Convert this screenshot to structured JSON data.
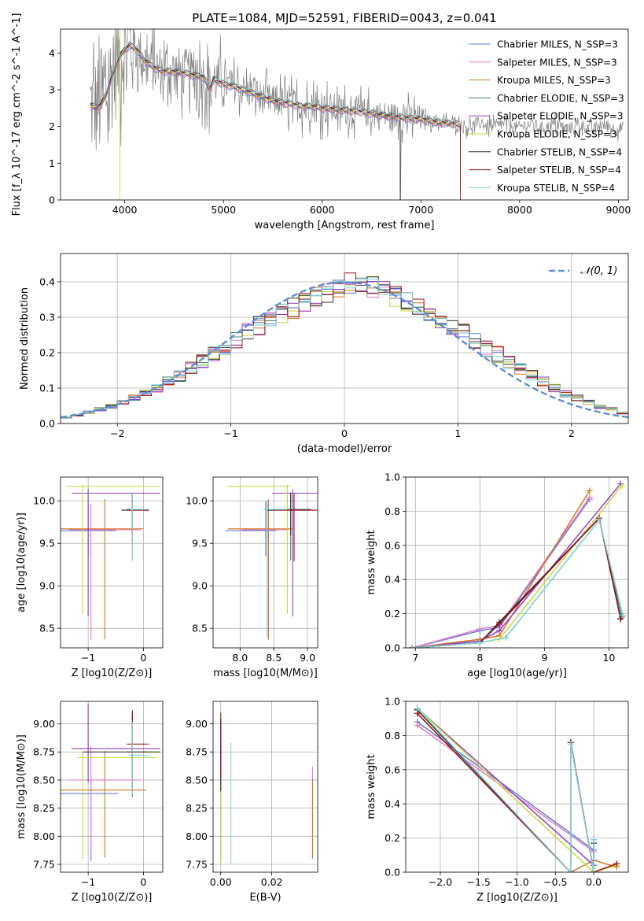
{
  "figure_title": "PLATE=1084, MJD=52591, FIBERID=0043, z=0.041",
  "chart_data": [
    {
      "id": "spectrum",
      "type": "line",
      "xlabel": "wavelength [Angstrom, rest frame]",
      "ylabel": "Flux [f_λ 10^-17 erg cm^-2 s^-1 A^-1]",
      "xlim": [
        3350,
        9100
      ],
      "ylim": [
        0,
        4.65
      ],
      "xticks": [
        4000,
        5000,
        6000,
        7000,
        8000,
        9000
      ],
      "yticks": [
        0,
        1,
        2,
        3,
        4
      ],
      "grid": false,
      "legend_position": "top-right",
      "data_color": "#808080",
      "data_extent": [
        3650,
        9050
      ],
      "model_extent": [
        3650,
        7400
      ],
      "model_points": {
        "x": [
          3650,
          3700,
          3760,
          3800,
          3850,
          3900,
          3950,
          4000,
          4050,
          4100,
          4150,
          4200,
          4300,
          4400,
          4500,
          4600,
          4700,
          4800,
          4860,
          4900,
          5000,
          5100,
          5200,
          5300,
          5400,
          5500,
          5600,
          5700,
          5800,
          5900,
          6000,
          6100,
          6200,
          6300,
          6400,
          6500,
          6600,
          6700,
          6800,
          6900,
          7000,
          7100,
          7200,
          7300,
          7400
        ],
        "y": [
          2.6,
          2.5,
          2.6,
          2.8,
          3.2,
          3.6,
          3.9,
          4.1,
          4.2,
          4.15,
          4.0,
          3.8,
          3.6,
          3.5,
          3.5,
          3.45,
          3.4,
          3.35,
          3.0,
          3.3,
          3.15,
          3.1,
          3.0,
          2.9,
          2.8,
          2.7,
          2.65,
          2.6,
          2.55,
          2.55,
          2.5,
          2.48,
          2.45,
          2.43,
          2.4,
          2.35,
          2.3,
          2.28,
          2.25,
          2.22,
          2.2,
          2.15,
          2.1,
          2.08,
          2.05
        ]
      },
      "series": [
        {
          "name": "Chabrier MILES, N_SSP=3",
          "color": "#5f7fd4"
        },
        {
          "name": "Salpeter MILES, N_SSP=3",
          "color": "#e57ac8"
        },
        {
          "name": "Kroupa MILES, N_SSP=3",
          "color": "#d9741c"
        },
        {
          "name": "Chabrier ELODIE, N_SSP=3",
          "color": "#3f7f6f"
        },
        {
          "name": "Salpeter ELODIE, N_SSP=3",
          "color": "#8f3fbf"
        },
        {
          "name": "Kroupa ELODIE, N_SSP=3",
          "color": "#c8d838"
        },
        {
          "name": "Chabrier STELIB, N_SSP=4",
          "color": "#303030"
        },
        {
          "name": "Salpeter STELIB, N_SSP=4",
          "color": "#a0101a"
        },
        {
          "name": "Kroupa STELIB, N_SSP=4",
          "color": "#7fd8e0"
        }
      ]
    },
    {
      "id": "residuals",
      "type": "bar",
      "xlabel": "(data-model)/error",
      "ylabel": "Normed distribution",
      "xlim": [
        -2.5,
        2.5
      ],
      "ylim": [
        0,
        0.48
      ],
      "xticks": [
        -2,
        -1,
        0,
        1,
        2
      ],
      "yticks": [
        0.0,
        0.1,
        0.2,
        0.3,
        0.4
      ],
      "grid": true,
      "legend_position": "top-right",
      "legend": "𝒩(0, 1)",
      "gaussian_color": "#5b8fd9",
      "bin_width": 0.1,
      "bin_start": -2.5,
      "base_values": [
        0.017,
        0.024,
        0.032,
        0.04,
        0.048,
        0.06,
        0.072,
        0.085,
        0.1,
        0.118,
        0.135,
        0.155,
        0.175,
        0.195,
        0.215,
        0.235,
        0.255,
        0.275,
        0.295,
        0.31,
        0.325,
        0.345,
        0.36,
        0.372,
        0.385,
        0.395,
        0.398,
        0.385,
        0.372,
        0.36,
        0.345,
        0.325,
        0.31,
        0.295,
        0.275,
        0.255,
        0.235,
        0.215,
        0.195,
        0.175,
        0.155,
        0.135,
        0.118,
        0.1,
        0.085,
        0.072,
        0.06,
        0.048,
        0.04,
        0.03
      ]
    },
    {
      "id": "age_vs_Z",
      "type": "scatter",
      "xlabel": "Z [log10(Z/Z⊙)]",
      "ylabel": "age  [log10(age/yr)]",
      "xlim": [
        -1.5,
        0.35
      ],
      "ylim": [
        8.27,
        10.28
      ],
      "xticks": [
        -1,
        0
      ],
      "yticks": [
        8.5,
        9.0,
        9.5,
        10.0
      ],
      "grid": true,
      "points": [
        {
          "x": -1.0,
          "y": 9.65,
          "xerr": [
            0.5,
            0.5
          ],
          "yerr": [
            0.3,
            0.35
          ],
          "series": 0
        },
        {
          "x": -0.95,
          "y": 9.66,
          "xerr": [
            0.4,
            0.9
          ],
          "yerr": [
            1.3,
            0.3
          ],
          "series": 1
        },
        {
          "x": -0.7,
          "y": 9.67,
          "xerr": [
            0.8,
            0.7
          ],
          "yerr": [
            1.3,
            0.35
          ],
          "series": 2
        },
        {
          "x": -0.2,
          "y": 9.9,
          "xerr": [
            0.1,
            0.3
          ],
          "yerr": [
            0.6,
            0.2
          ],
          "series": 3
        },
        {
          "x": -1.0,
          "y": 10.09,
          "xerr": [
            0.3,
            1.3
          ],
          "yerr": [
            1.45,
            0.05
          ],
          "series": 4
        },
        {
          "x": -1.1,
          "y": 10.17,
          "xerr": [
            0.3,
            1.4
          ],
          "yerr": [
            1.5,
            0.02
          ],
          "series": 5
        },
        {
          "x": -0.2,
          "y": 9.89,
          "xerr": [
            0.2,
            0.3
          ],
          "yerr": [
            0.3,
            0.2
          ],
          "series": 6
        },
        {
          "x": -0.2,
          "y": 9.89,
          "xerr": [
            0.1,
            0.3
          ],
          "yerr": [
            0.3,
            0.2
          ],
          "series": 7
        },
        {
          "x": -0.2,
          "y": 9.9,
          "xerr": [
            0.05,
            0.3
          ],
          "yerr": [
            0.6,
            0.2
          ],
          "series": 8
        }
      ]
    },
    {
      "id": "age_vs_mass",
      "type": "scatter",
      "xlabel": "mass [log10(M/M⊙)]",
      "ylabel": "",
      "xlim": [
        7.6,
        9.15
      ],
      "ylim": [
        8.27,
        10.28
      ],
      "xticks": [
        8.0,
        8.5,
        9.0
      ],
      "yticks": [
        8.5,
        9.0,
        9.5,
        10.0
      ],
      "grid": true,
      "points": [
        {
          "x": 8.38,
          "y": 9.65,
          "xerr": [
            0.6,
            0.15
          ],
          "yerr": [
            0.3,
            0.35
          ],
          "series": 0
        },
        {
          "x": 8.42,
          "y": 9.66,
          "xerr": [
            0.4,
            0.3
          ],
          "yerr": [
            1.3,
            0.3
          ],
          "series": 1
        },
        {
          "x": 8.42,
          "y": 9.67,
          "xerr": [
            0.6,
            0.35
          ],
          "yerr": [
            1.3,
            0.35
          ],
          "series": 2
        },
        {
          "x": 8.75,
          "y": 9.9,
          "xerr": [
            0.4,
            0.3
          ],
          "yerr": [
            0.6,
            0.2
          ],
          "series": 3
        },
        {
          "x": 8.78,
          "y": 10.09,
          "xerr": [
            0.3,
            0.4
          ],
          "yerr": [
            1.45,
            0.05
          ],
          "series": 4
        },
        {
          "x": 8.7,
          "y": 10.17,
          "xerr": [
            0.9,
            0.05
          ],
          "yerr": [
            1.5,
            0.02
          ],
          "series": 5
        },
        {
          "x": 8.75,
          "y": 9.89,
          "xerr": [
            0.35,
            0.35
          ],
          "yerr": [
            0.3,
            0.2
          ],
          "series": 6
        },
        {
          "x": 8.8,
          "y": 9.89,
          "xerr": [
            0.3,
            0.35
          ],
          "yerr": [
            0.6,
            0.2
          ],
          "series": 7
        },
        {
          "x": 8.4,
          "y": 9.9,
          "xerr": [
            0.05,
            0.3
          ],
          "yerr": [
            1.5,
            0.1
          ],
          "series": 8
        }
      ]
    },
    {
      "id": "weight_vs_age",
      "type": "line",
      "xlabel": "age  [log10(age/yr)]",
      "ylabel": "mass weight",
      "xlim": [
        6.85,
        10.3
      ],
      "ylim": [
        0,
        1
      ],
      "xticks": [
        7,
        8,
        9,
        10
      ],
      "yticks": [
        0.0,
        0.2,
        0.4,
        0.6,
        0.8,
        1.0
      ],
      "grid": true,
      "lines": [
        {
          "series": 0,
          "x": [
            6.95,
            8.0,
            8.3,
            9.7
          ],
          "y": [
            0.0,
            0.1,
            0.12,
            0.87
          ]
        },
        {
          "series": 1,
          "x": [
            6.95,
            8.0,
            8.3,
            9.7
          ],
          "y": [
            0.0,
            0.11,
            0.13,
            0.88
          ]
        },
        {
          "series": 2,
          "x": [
            6.95,
            8.0,
            8.3,
            9.7
          ],
          "y": [
            0.0,
            0.05,
            0.07,
            0.92
          ]
        },
        {
          "series": 3,
          "x": [
            6.95,
            8.0,
            8.4,
            9.85,
            10.2
          ],
          "y": [
            0.0,
            0.03,
            0.06,
            0.75,
            0.18
          ]
        },
        {
          "series": 4,
          "x": [
            6.95,
            8.0,
            8.3,
            10.18
          ],
          "y": [
            0.0,
            0.04,
            0.1,
            0.96
          ]
        },
        {
          "series": 5,
          "x": [
            6.95,
            8.0,
            8.3,
            10.2
          ],
          "y": [
            0.0,
            0.03,
            0.05,
            0.95
          ]
        },
        {
          "series": 6,
          "x": [
            6.95,
            8.0,
            8.3,
            9.85,
            10.18
          ],
          "y": [
            0.0,
            0.03,
            0.15,
            0.76,
            0.17
          ]
        },
        {
          "series": 7,
          "x": [
            6.95,
            8.0,
            8.3,
            9.85,
            10.18
          ],
          "y": [
            0.0,
            0.03,
            0.14,
            0.76,
            0.17
          ]
        },
        {
          "series": 8,
          "x": [
            6.95,
            8.0,
            8.4,
            9.85,
            10.22
          ],
          "y": [
            0.0,
            0.03,
            0.06,
            0.75,
            0.19
          ]
        }
      ]
    },
    {
      "id": "mass_vs_Z",
      "type": "scatter",
      "xlabel": "Z [log10(Z/Z⊙)]",
      "ylabel": "mass [log10(M/M⊙)]",
      "xlim": [
        -1.5,
        0.35
      ],
      "ylim": [
        7.68,
        9.2
      ],
      "xticks": [
        -1,
        0
      ],
      "yticks": [
        7.75,
        8.0,
        8.25,
        8.5,
        8.75,
        9.0
      ],
      "grid": true,
      "points": [
        {
          "x": -0.95,
          "y": 8.38,
          "xerr": [
            0.55,
            0.5
          ],
          "yerr": [
            0.6,
            0.15
          ],
          "series": 0
        },
        {
          "x": -0.95,
          "y": 8.5,
          "xerr": [
            0.4,
            0.9
          ],
          "yerr": [
            0.65,
            0.3
          ],
          "series": 1
        },
        {
          "x": -0.7,
          "y": 8.41,
          "xerr": [
            0.8,
            0.75
          ],
          "yerr": [
            0.6,
            0.35
          ],
          "series": 2
        },
        {
          "x": -0.2,
          "y": 8.75,
          "xerr": [
            0.1,
            0.4
          ],
          "yerr": [
            0.4,
            0.3
          ],
          "series": 3
        },
        {
          "x": -1.0,
          "y": 8.78,
          "xerr": [
            0.3,
            1.3
          ],
          "yerr": [
            0.3,
            0.4
          ],
          "series": 4
        },
        {
          "x": -1.1,
          "y": 8.7,
          "xerr": [
            0.1,
            1.35
          ],
          "yerr": [
            0.9,
            0.05
          ],
          "series": 5
        },
        {
          "x": -0.2,
          "y": 8.75,
          "xerr": [
            0.9,
            0.5
          ],
          "yerr": [
            0.35,
            0.35
          ],
          "series": 6
        },
        {
          "x": -0.2,
          "y": 8.82,
          "xerr": [
            0.1,
            0.3
          ],
          "yerr": [
            0.3,
            0.3
          ],
          "series": 7
        },
        {
          "x": -0.2,
          "y": 8.72,
          "xerr": [
            0.05,
            0.3
          ],
          "yerr": [
            0.35,
            0.3
          ],
          "series": 8
        }
      ]
    },
    {
      "id": "mass_vs_EBV",
      "type": "scatter",
      "xlabel": "E(B-V)",
      "ylabel": "",
      "xlim": [
        -0.003,
        0.038
      ],
      "ylim": [
        7.68,
        9.2
      ],
      "xticks": [
        0.0,
        0.02
      ],
      "yticks": [
        7.75,
        8.0,
        8.25,
        8.5,
        8.75,
        9.0
      ],
      "grid": true,
      "points": [
        {
          "x": 0.0,
          "y": 8.38,
          "yerr": [
            0.6,
            0.6
          ],
          "series": 0
        },
        {
          "x": 0.036,
          "y": 8.5,
          "yerr": [
            0.7,
            0.12
          ],
          "series": 1
        },
        {
          "x": 0.036,
          "y": 8.41,
          "yerr": [
            0.6,
            0.1
          ],
          "series": 2
        },
        {
          "x": 0.0,
          "y": 8.75,
          "yerr": [
            0.35,
            0.25
          ],
          "series": 3
        },
        {
          "x": 0.0,
          "y": 8.78,
          "yerr": [
            0.3,
            0.25
          ],
          "series": 4
        },
        {
          "x": 0.0,
          "y": 8.3,
          "yerr": [
            0.55,
            0.3
          ],
          "series": 5
        },
        {
          "x": 0.0,
          "y": 8.75,
          "yerr": [
            0.35,
            0.3
          ],
          "series": 6
        },
        {
          "x": 0.0,
          "y": 8.82,
          "yerr": [
            0.3,
            0.28
          ],
          "series": 7
        },
        {
          "x": 0.004,
          "y": 8.5,
          "yerr": [
            0.75,
            0.33
          ],
          "series": 8
        }
      ]
    },
    {
      "id": "weight_vs_Z",
      "type": "line",
      "xlabel": "Z [log10(Z/Z⊙)]",
      "ylabel": "mass weight",
      "xlim": [
        -2.45,
        0.45
      ],
      "ylim": [
        0,
        1
      ],
      "xticks": [
        -2.0,
        -1.5,
        -1.0,
        -0.5,
        0.0
      ],
      "yticks": [
        0.0,
        0.2,
        0.4,
        0.6,
        0.8,
        1.0
      ],
      "grid": true,
      "lines": [
        {
          "series": 0,
          "x": [
            -2.3,
            0.0
          ],
          "y": [
            0.88,
            0.13
          ]
        },
        {
          "series": 1,
          "x": [
            -2.3,
            0.0
          ],
          "y": [
            0.86,
            0.12
          ]
        },
        {
          "series": 2,
          "x": [
            -2.3,
            -0.3,
            0.0,
            0.3
          ],
          "y": [
            0.93,
            0.0,
            0.07,
            0.03
          ]
        },
        {
          "series": 3,
          "x": [
            -2.3,
            -0.3,
            -0.3,
            0.0,
            0.0
          ],
          "y": [
            0.95,
            0.0,
            0.76,
            0.0,
            0.19
          ]
        },
        {
          "series": 4,
          "x": [
            -2.3,
            0.0
          ],
          "y": [
            0.96,
            0.04
          ]
        },
        {
          "series": 5,
          "x": [
            -2.3,
            0.0,
            0.3
          ],
          "y": [
            0.96,
            0.0,
            0.04
          ]
        },
        {
          "series": 6,
          "x": [
            -2.3,
            -0.3,
            -0.3,
            0.0,
            0.0
          ],
          "y": [
            0.95,
            0.0,
            0.76,
            0.0,
            0.17
          ]
        },
        {
          "series": 7,
          "x": [
            -2.3,
            -0.3,
            -0.3,
            0.0,
            0.3
          ],
          "y": [
            0.93,
            0.0,
            0.76,
            0.0,
            0.05
          ]
        },
        {
          "series": 8,
          "x": [
            -2.3,
            -0.3,
            -0.3,
            0.0,
            0.0
          ],
          "y": [
            0.96,
            0.0,
            0.75,
            0.0,
            0.19
          ]
        }
      ]
    }
  ]
}
